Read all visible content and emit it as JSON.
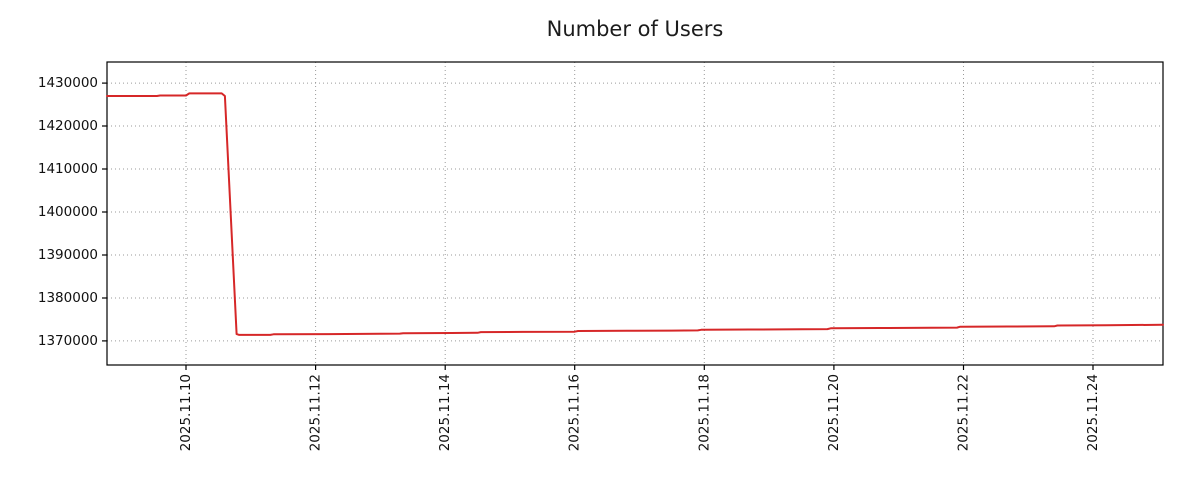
{
  "chart_data": {
    "type": "line",
    "title": "Number of Users",
    "xlabel": "",
    "ylabel": "",
    "grid": true,
    "legend": "none",
    "x_unit": "date (day of November 2025)",
    "xlim": [
      8.78,
      25.08
    ],
    "ylim": [
      1364400,
      1434900
    ],
    "x_ticks": [
      {
        "value": 10,
        "label": "2025.11.10"
      },
      {
        "value": 12,
        "label": "2025.11.12"
      },
      {
        "value": 14,
        "label": "2025.11.14"
      },
      {
        "value": 16,
        "label": "2025.11.16"
      },
      {
        "value": 18,
        "label": "2025.11.18"
      },
      {
        "value": 20,
        "label": "2025.11.20"
      },
      {
        "value": 22,
        "label": "2025.11.22"
      },
      {
        "value": 24,
        "label": "2025.11.24"
      }
    ],
    "y_ticks": [
      1370000,
      1380000,
      1390000,
      1400000,
      1410000,
      1420000,
      1430000
    ],
    "series": [
      {
        "name": "Number of Users",
        "color": "#d62728",
        "line_width": 2,
        "points": [
          [
            8.78,
            1427000
          ],
          [
            9.55,
            1427000
          ],
          [
            9.6,
            1427100
          ],
          [
            10.0,
            1427100
          ],
          [
            10.05,
            1427600
          ],
          [
            10.55,
            1427600
          ],
          [
            10.6,
            1427000
          ],
          [
            10.78,
            1371600
          ],
          [
            10.82,
            1371400
          ],
          [
            11.3,
            1371400
          ],
          [
            11.35,
            1371550
          ],
          [
            12.2,
            1371600
          ],
          [
            13.0,
            1371650
          ],
          [
            13.3,
            1371700
          ],
          [
            13.35,
            1371800
          ],
          [
            14.1,
            1371850
          ],
          [
            14.5,
            1371900
          ],
          [
            14.55,
            1372050
          ],
          [
            15.2,
            1372100
          ],
          [
            16.0,
            1372150
          ],
          [
            16.05,
            1372300
          ],
          [
            16.8,
            1372350
          ],
          [
            17.5,
            1372400
          ],
          [
            17.9,
            1372450
          ],
          [
            17.95,
            1372600
          ],
          [
            18.7,
            1372650
          ],
          [
            19.5,
            1372700
          ],
          [
            19.9,
            1372750
          ],
          [
            19.95,
            1372950
          ],
          [
            20.7,
            1373000
          ],
          [
            21.5,
            1373050
          ],
          [
            21.9,
            1373100
          ],
          [
            21.95,
            1373300
          ],
          [
            22.7,
            1373350
          ],
          [
            23.4,
            1373400
          ],
          [
            23.45,
            1373600
          ],
          [
            24.2,
            1373650
          ],
          [
            25.08,
            1373750
          ]
        ]
      }
    ],
    "colors": {
      "line": "#d62728",
      "grid": "#9a9a9a",
      "frame": "#000000",
      "text": "#111111",
      "background": "#ffffff"
    }
  }
}
